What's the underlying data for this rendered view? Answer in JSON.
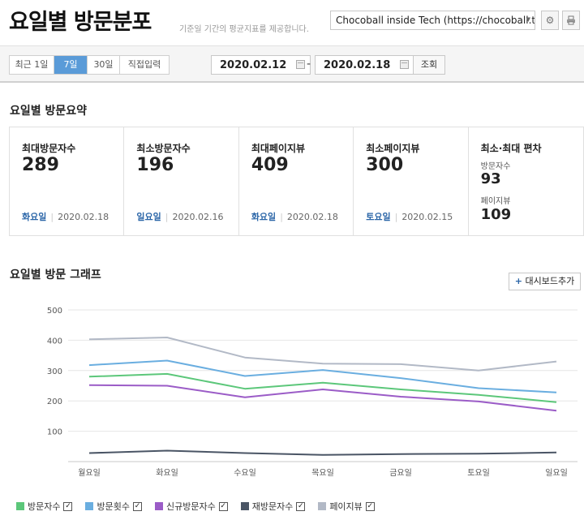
{
  "header": {
    "title": "요일별 방문분포",
    "subtitle": "기준일 기간의 평균지표를 제공합니다.",
    "site_select": "Chocoball inside Tech (https://chocoball.t",
    "settings_icon": "gear-icon",
    "print_icon": "print-icon"
  },
  "filter": {
    "tabs": [
      {
        "label": "최근 1일",
        "active": false
      },
      {
        "label": "7일",
        "active": true
      },
      {
        "label": "30일",
        "active": false
      },
      {
        "label": "직접입력",
        "active": false
      }
    ],
    "start_date": "2020.02.12",
    "end_date": "2020.02.18",
    "dash": "-",
    "query_label": "조회"
  },
  "summary": {
    "title": "요일별 방문요약",
    "cards": [
      {
        "label": "최대방문자수",
        "value": "289",
        "day": "화요일",
        "date": "2020.02.18"
      },
      {
        "label": "최소방문자수",
        "value": "196",
        "day": "일요일",
        "date": "2020.02.16"
      },
      {
        "label": "최대페이지뷰",
        "value": "409",
        "day": "화요일",
        "date": "2020.02.18"
      },
      {
        "label": "최소페이지뷰",
        "value": "300",
        "day": "토요일",
        "date": "2020.02.15"
      }
    ],
    "deviation": {
      "label": "최소·최대 편차",
      "visitors_label": "방문자수",
      "visitors_value": "93",
      "pageviews_label": "페이지뷰",
      "pageviews_value": "109"
    }
  },
  "graph": {
    "title": "요일별 방문 그래프",
    "add_dashboard_label": "대시보드추가"
  },
  "chart_data": {
    "type": "line",
    "categories": [
      "월요일",
      "화요일",
      "수요일",
      "목요일",
      "금요일",
      "토요일",
      "일요일"
    ],
    "ylim": [
      0,
      500
    ],
    "yticks": [
      100,
      200,
      300,
      400,
      500
    ],
    "grid": true,
    "legend_placement": "bottom-left",
    "series": [
      {
        "name": "방문자수",
        "color": "#5cc77a",
        "checked": true,
        "values": [
          280,
          289,
          240,
          260,
          238,
          220,
          196
        ]
      },
      {
        "name": "방문횟수",
        "color": "#6aaee0",
        "checked": true,
        "values": [
          318,
          333,
          282,
          302,
          275,
          242,
          228
        ]
      },
      {
        "name": "신규방문자수",
        "color": "#9b5cc7",
        "checked": true,
        "values": [
          252,
          250,
          212,
          238,
          214,
          198,
          168
        ]
      },
      {
        "name": "재방문자수",
        "color": "#4a5565",
        "checked": true,
        "values": [
          28,
          36,
          28,
          22,
          25,
          26,
          30
        ]
      },
      {
        "name": "페이지뷰",
        "color": "#b2b9c6",
        "checked": true,
        "values": [
          403,
          409,
          343,
          323,
          321,
          300,
          330
        ]
      }
    ]
  }
}
